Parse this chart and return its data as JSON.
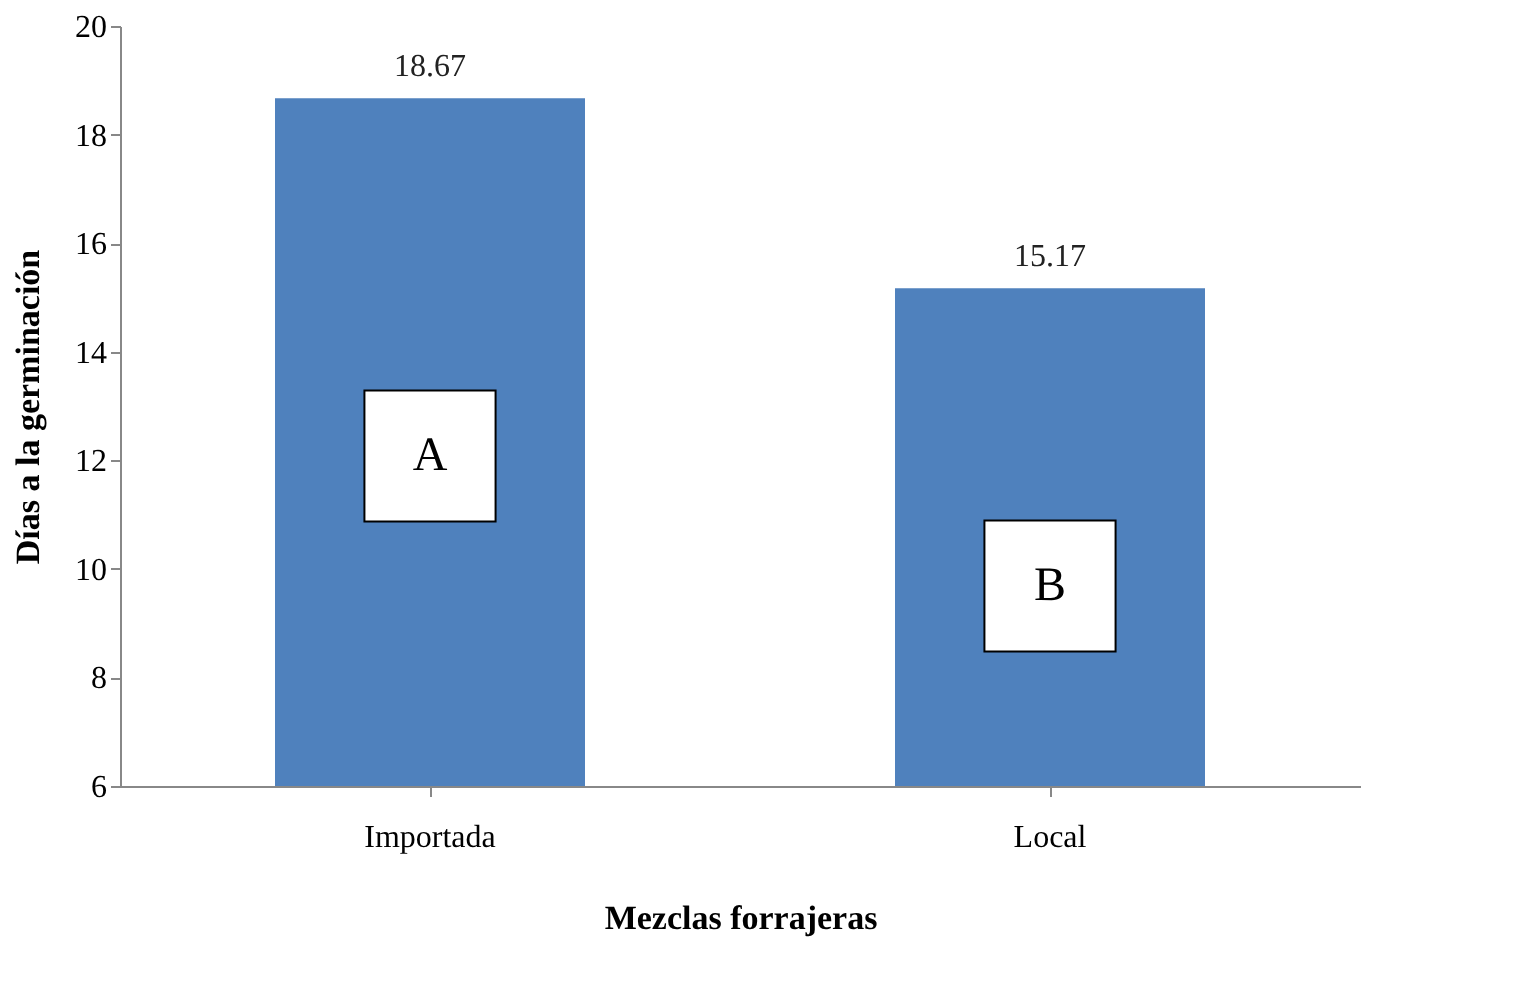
{
  "chart_data": {
    "type": "bar",
    "categories": [
      "Importada",
      "Local"
    ],
    "values": [
      18.67,
      15.17
    ],
    "color": "#4f81bd",
    "xlabel": "Mezclas forrajeras",
    "ylabel": "Días a la germinación",
    "ylim": [
      6,
      20
    ],
    "yticks": [
      6,
      8,
      10,
      12,
      14,
      16,
      18,
      20
    ],
    "data_labels": true,
    "grid": false,
    "annotations": [
      "A",
      "B"
    ]
  }
}
